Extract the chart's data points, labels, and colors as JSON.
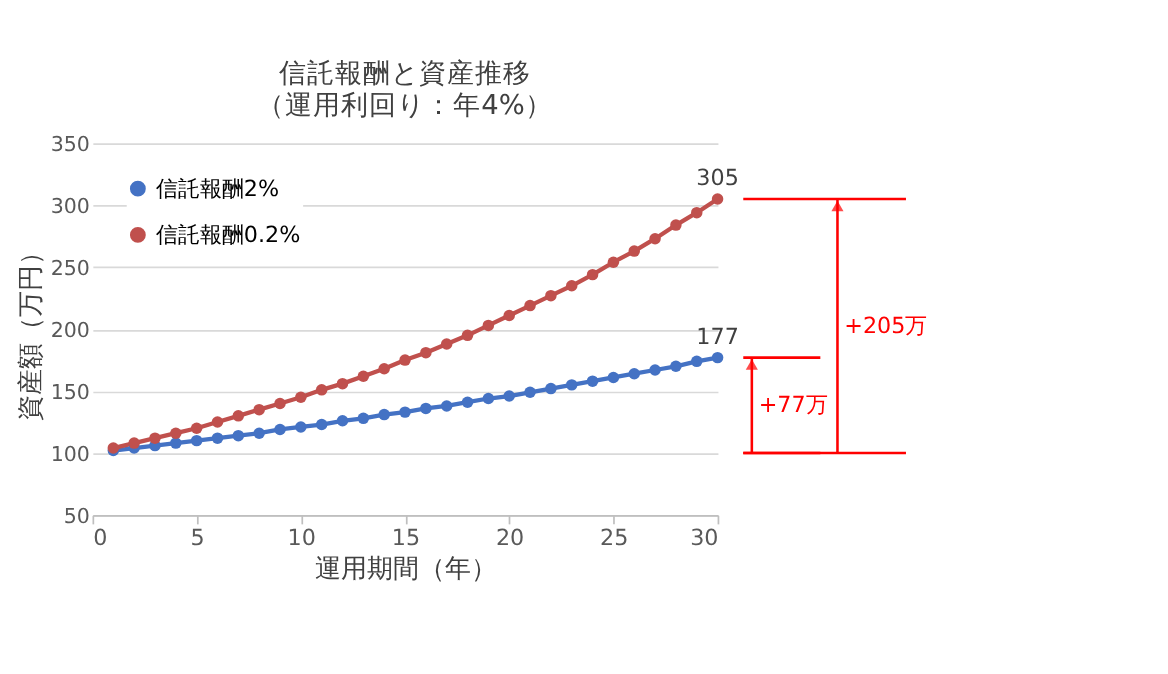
{
  "chart_data": {
    "type": "line",
    "title": "信託報酬と資産推移",
    "subtitle": "（運用利回り：年4%）",
    "xlabel": "運用期間（年）",
    "ylabel": "資産額（万円）",
    "x": [
      1,
      2,
      3,
      4,
      5,
      6,
      7,
      8,
      9,
      10,
      11,
      12,
      13,
      14,
      15,
      16,
      17,
      18,
      19,
      20,
      21,
      22,
      23,
      24,
      25,
      26,
      27,
      28,
      29,
      30
    ],
    "series": [
      {
        "name": "信託報酬2%",
        "color": "#4472c4",
        "values": [
          102,
          104,
          106,
          108,
          110,
          112,
          114,
          116,
          119,
          121,
          123,
          126,
          128,
          131,
          133,
          136,
          138,
          141,
          144,
          146,
          149,
          152,
          155,
          158,
          161,
          164,
          167,
          170,
          174,
          177
        ],
        "value_labels": [
          null,
          null,
          null,
          null,
          null,
          null,
          null,
          null,
          null,
          null,
          null,
          null,
          null,
          null,
          null,
          null,
          null,
          null,
          null,
          null,
          null,
          null,
          null,
          null,
          null,
          null,
          null,
          null,
          null,
          "177"
        ]
      },
      {
        "name": "信託報酬0.2%",
        "color": "#c0504d",
        "values": [
          104,
          108,
          112,
          116,
          120,
          125,
          130,
          135,
          140,
          145,
          151,
          156,
          162,
          168,
          175,
          181,
          188,
          195,
          203,
          211,
          219,
          227,
          235,
          244,
          254,
          263,
          273,
          284,
          294,
          305
        ],
        "value_labels": [
          null,
          null,
          null,
          null,
          null,
          null,
          null,
          null,
          null,
          null,
          null,
          null,
          null,
          null,
          null,
          null,
          null,
          null,
          null,
          null,
          null,
          null,
          null,
          null,
          null,
          null,
          null,
          null,
          null,
          "305"
        ]
      }
    ],
    "xlim": [
      0,
      30
    ],
    "xticks": [
      0,
      5,
      10,
      15,
      20,
      25,
      30
    ],
    "ylim": [
      50,
      350
    ],
    "yticks": [
      50,
      100,
      150,
      200,
      250,
      300,
      350
    ],
    "grid": "y",
    "legend": "top left",
    "marker": "circle",
    "line_style": "solid",
    "annotations": [
      "+77万",
      "+205万"
    ]
  }
}
